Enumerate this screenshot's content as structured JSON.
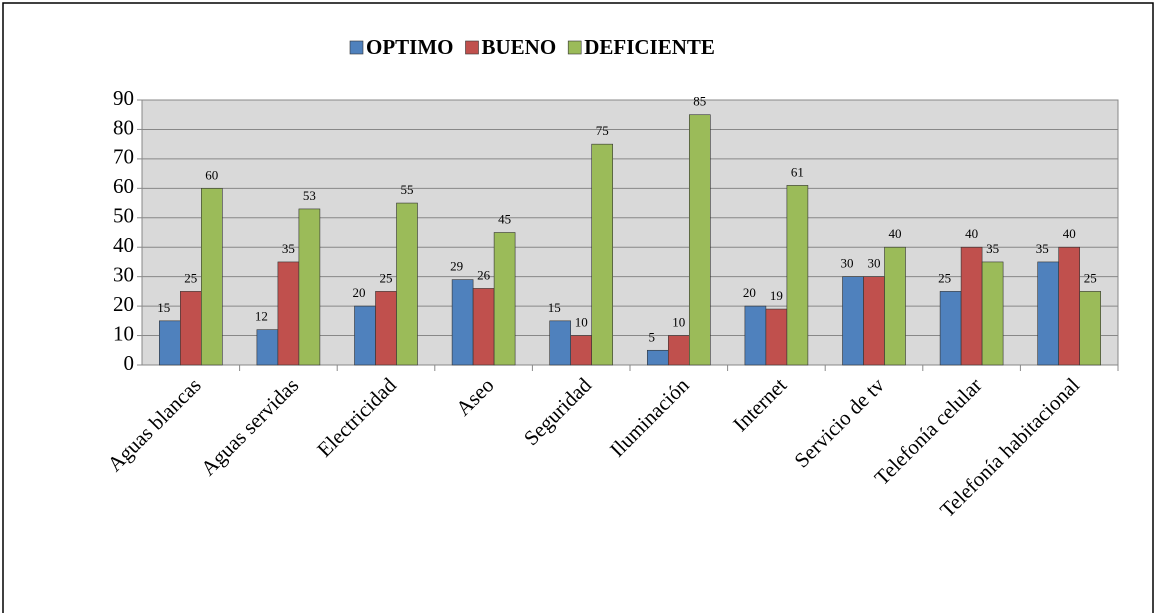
{
  "chart_data": {
    "type": "bar",
    "categories": [
      "Aguas blancas",
      "Aguas servidas",
      "Electricidad",
      "Aseo",
      "Seguridad",
      "Iluminación",
      "Internet",
      "Servicio de tv",
      "Telefonía celular",
      "Telefonía habitacional"
    ],
    "series": [
      {
        "name": "OPTIMO",
        "color": "#4f81bd",
        "values": [
          15,
          12,
          20,
          29,
          15,
          5,
          20,
          30,
          25,
          35
        ]
      },
      {
        "name": "BUENO",
        "color": "#c0504d",
        "values": [
          25,
          35,
          25,
          26,
          10,
          10,
          19,
          30,
          40,
          40
        ]
      },
      {
        "name": "DEFICIENTE",
        "color": "#9bbb59",
        "values": [
          60,
          53,
          55,
          45,
          75,
          85,
          61,
          40,
          35,
          25
        ]
      }
    ],
    "ylim": [
      0,
      90
    ],
    "yticks": [
      0,
      10,
      20,
      30,
      40,
      50,
      60,
      70,
      80,
      90
    ],
    "grid": true
  }
}
